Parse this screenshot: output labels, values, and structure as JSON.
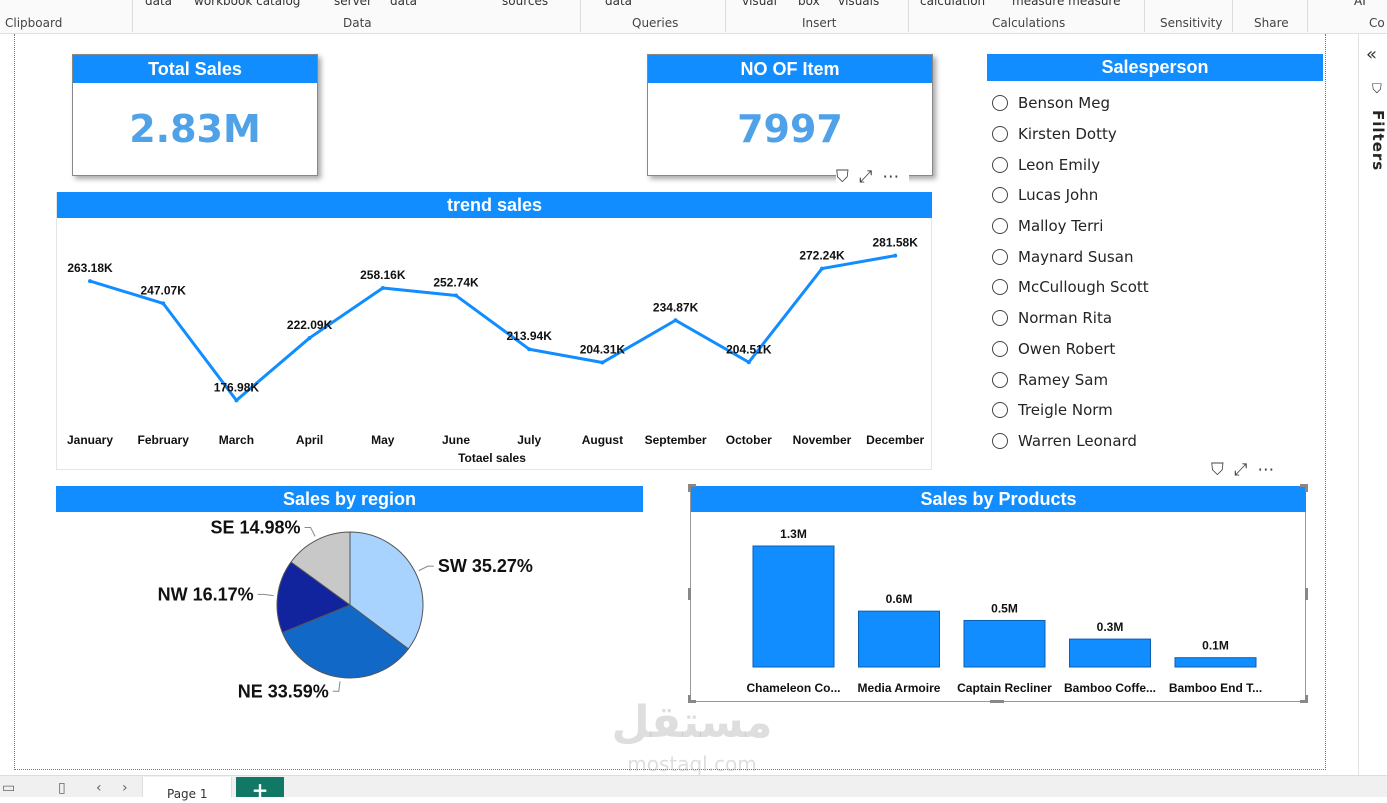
{
  "ribbon": {
    "top_items": [
      "data",
      "workbook catalog",
      "server",
      "data",
      "sources",
      "data",
      "visual",
      "box",
      "visuals",
      "calculation",
      "measure measure",
      "AI"
    ],
    "groups": [
      "Clipboard",
      "Data",
      "Queries",
      "Insert",
      "Calculations",
      "Sensitivity",
      "Share",
      "Co"
    ]
  },
  "cards": {
    "total_sales": {
      "title": "Total Sales",
      "value": "2.83M"
    },
    "items": {
      "title": "NO OF Item",
      "value": "7997"
    }
  },
  "trend": {
    "title": "trend sales",
    "xlabel": "Totael sales"
  },
  "slicer": {
    "title": "Salesperson",
    "items": [
      "Benson Meg",
      "Kirsten Dotty",
      "Leon Emily",
      "Lucas John",
      "Malloy Terri",
      "Maynard Susan",
      "McCullough Scott",
      "Norman Rita",
      "Owen Robert",
      "Ramey Sam",
      "Treigle Norm",
      "Warren Leonard"
    ]
  },
  "region": {
    "title": "Sales by region"
  },
  "products": {
    "title": "Sales by Products"
  },
  "filters_pane": {
    "label": "Filters"
  },
  "page_tab": {
    "label": "Page 1"
  },
  "watermark": {
    "text": "mostaql.com"
  },
  "chart_data": [
    {
      "type": "line",
      "title": "trend sales",
      "xlabel": "Totael sales",
      "categories": [
        "January",
        "February",
        "March",
        "April",
        "May",
        "June",
        "July",
        "August",
        "September",
        "October",
        "November",
        "December"
      ],
      "values": [
        263.18,
        247.07,
        176.98,
        222.09,
        258.16,
        252.74,
        213.94,
        204.31,
        234.87,
        204.51,
        272.24,
        281.58
      ],
      "labels": [
        "263.18K",
        "247.07K",
        "176.98K",
        "222.09K",
        "258.16K",
        "252.74K",
        "213.94K",
        "204.31K",
        "234.87K",
        "204.51K",
        "272.24K",
        "281.58K"
      ],
      "color": "#118DFF"
    },
    {
      "type": "pie",
      "title": "Sales by region",
      "slices": [
        {
          "name": "SW",
          "value": 35.27,
          "label": "SW 35.27%",
          "color": "#A7D3FE"
        },
        {
          "name": "NE",
          "value": 33.59,
          "label": "NE 33.59%",
          "color": "#1168C7"
        },
        {
          "name": "NW",
          "value": 16.17,
          "label": "NW 16.17%",
          "color": "#12239E"
        },
        {
          "name": "SE",
          "value": 14.98,
          "label": "SE 14.98%",
          "color": "#C8C8C8"
        }
      ]
    },
    {
      "type": "bar",
      "title": "Sales by Products",
      "categories": [
        "Chameleon Co...",
        "Media Armoire",
        "Captain Recliner",
        "Bamboo Coffe...",
        "Bamboo End T..."
      ],
      "values": [
        1.3,
        0.6,
        0.5,
        0.3,
        0.1
      ],
      "labels": [
        "1.3M",
        "0.6M",
        "0.5M",
        "0.3M",
        "0.1M"
      ],
      "ylim": [
        0,
        1.3
      ],
      "color": "#118DFF"
    }
  ]
}
